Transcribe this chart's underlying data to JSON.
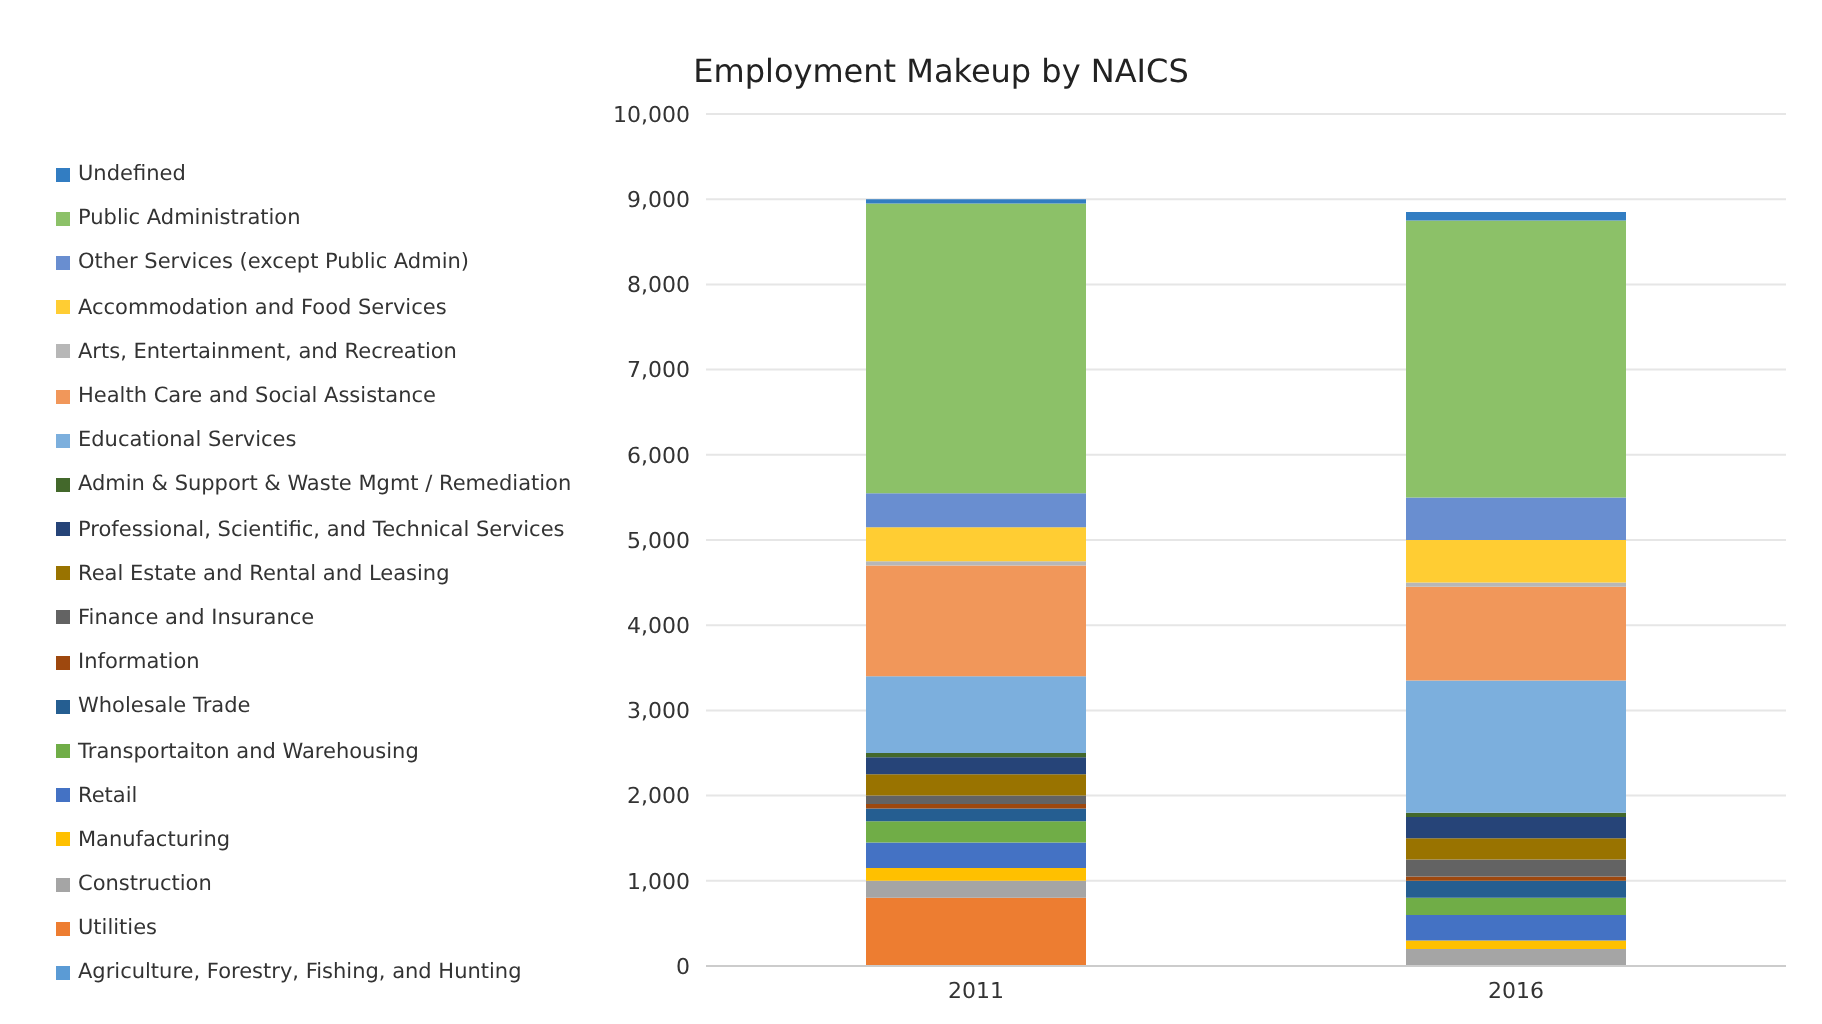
{
  "chart_data": {
    "type": "bar",
    "title": "Employment Makeup by NAICS",
    "categories": [
      "2011",
      "2016"
    ],
    "stacked": true,
    "ylim": [
      0,
      10000
    ],
    "yticks": [
      {
        "value": 0,
        "label": "0"
      },
      {
        "value": 1000,
        "label": "1,000"
      },
      {
        "value": 2000,
        "label": "2,000"
      },
      {
        "value": 3000,
        "label": "3,000"
      },
      {
        "value": 4000,
        "label": "4,000"
      },
      {
        "value": 5000,
        "label": "5,000"
      },
      {
        "value": 6000,
        "label": "6,000"
      },
      {
        "value": 7000,
        "label": "7,000"
      },
      {
        "value": 8000,
        "label": "8,000"
      },
      {
        "value": 9000,
        "label": "9,000"
      },
      {
        "value": 10000,
        "label": "10,000"
      }
    ],
    "grid": "y",
    "legend": "left",
    "series": [
      {
        "name": "Agriculture, Forestry, Fishing, and Hunting",
        "color": "#5b9bd5",
        "values": [
          0,
          0
        ]
      },
      {
        "name": "Utilities",
        "color": "#ed7d31",
        "values": [
          800,
          0
        ]
      },
      {
        "name": "Construction",
        "color": "#a5a5a5",
        "values": [
          200,
          200
        ]
      },
      {
        "name": "Manufacturing",
        "color": "#ffc000",
        "values": [
          150,
          100
        ]
      },
      {
        "name": "Retail",
        "color": "#4472c4",
        "values": [
          300,
          300
        ]
      },
      {
        "name": "Transportaiton and Warehousing",
        "color": "#70ad47",
        "values": [
          250,
          200
        ]
      },
      {
        "name": "Wholesale Trade",
        "color": "#255e91",
        "values": [
          150,
          200
        ]
      },
      {
        "name": "Information",
        "color": "#9e480e",
        "values": [
          50,
          50
        ]
      },
      {
        "name": "Finance and Insurance",
        "color": "#636363",
        "values": [
          100,
          200
        ]
      },
      {
        "name": "Real Estate and Rental and Leasing",
        "color": "#997300",
        "values": [
          250,
          250
        ]
      },
      {
        "name": "Professional, Scientific, and Technical Services",
        "color": "#264478",
        "values": [
          200,
          250
        ]
      },
      {
        "name": "Admin & Support & Waste Mgmt / Remediation",
        "color": "#43682b",
        "values": [
          50,
          50
        ]
      },
      {
        "name": "Educational Services",
        "color": "#7cafdd",
        "values": [
          900,
          1550
        ]
      },
      {
        "name": "Health Care and Social Assistance",
        "color": "#f1975a",
        "values": [
          1300,
          1100
        ]
      },
      {
        "name": "Arts, Entertainment, and Recreation",
        "color": "#b7b7b7",
        "values": [
          50,
          50
        ]
      },
      {
        "name": "Accommodation and Food Services",
        "color": "#ffcd33",
        "values": [
          400,
          500
        ]
      },
      {
        "name": "Other Services (except Public Admin)",
        "color": "#698ed0",
        "values": [
          400,
          500
        ]
      },
      {
        "name": "Public Administration",
        "color": "#8cc168",
        "values": [
          3400,
          3250
        ]
      },
      {
        "name": "Undefined",
        "color": "#327dc2",
        "values": [
          50,
          100
        ]
      }
    ]
  }
}
